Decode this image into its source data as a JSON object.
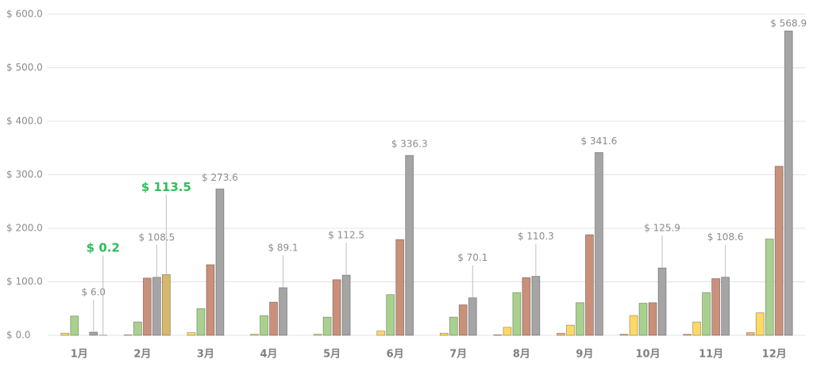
{
  "chart_data": {
    "type": "bar",
    "categories": [
      "1月",
      "2月",
      "3月",
      "4月",
      "5月",
      "6月",
      "7月",
      "8月",
      "9月",
      "10月",
      "11月",
      "12月"
    ],
    "series": [
      {
        "color": "#f4b183",
        "values": [
          null,
          null,
          null,
          null,
          null,
          null,
          null,
          1,
          4,
          2,
          2,
          5
        ]
      },
      {
        "color": "#ffd966",
        "values": [
          4,
          1,
          5,
          2,
          2,
          8,
          4,
          15,
          19,
          37,
          25,
          42
        ]
      },
      {
        "color": "#a9d18e",
        "values": [
          36,
          25,
          50,
          37,
          34,
          76,
          34,
          80,
          61,
          60,
          80,
          180
        ]
      },
      {
        "color": "#c9907a",
        "values": [
          null,
          107,
          132,
          62,
          104,
          179,
          57,
          108,
          188,
          61,
          106,
          316
        ]
      },
      {
        "color": "#a5a5a5",
        "values": [
          6.0,
          108.5,
          273.6,
          89.1,
          112.5,
          336.3,
          70.1,
          110.3,
          341.6,
          125.9,
          108.6,
          568.9
        ],
        "value_labels": [
          "$ 6.0",
          "$ 108.5",
          "$ 273.6",
          "$ 89.1",
          "$ 112.5",
          "$ 336.3",
          "$ 70.1",
          "$ 110.3",
          "$ 341.6",
          "$ 125.9",
          "$ 108.6",
          "$ 568.9"
        ]
      },
      {
        "color": "#d6b86a",
        "values": [
          0.2,
          113.5,
          null,
          null,
          null,
          null,
          null,
          null,
          null,
          null,
          null,
          null
        ],
        "value_labels": [
          "$ 0.2",
          "$ 113.5",
          null,
          null,
          null,
          null,
          null,
          null,
          null,
          null,
          null,
          null
        ]
      }
    ],
    "ylim": [
      0,
      600
    ],
    "yticks": [
      {
        "value": 0,
        "label": "$ 0.0"
      },
      {
        "value": 100,
        "label": "$ 100.0"
      },
      {
        "value": 200,
        "label": "$ 200.0"
      },
      {
        "value": 300,
        "label": "$ 300.0"
      },
      {
        "value": 400,
        "label": "$ 400.0"
      },
      {
        "value": 500,
        "label": "$ 500.0"
      },
      {
        "value": 600,
        "label": "$ 600.0"
      }
    ],
    "grid": true
  }
}
